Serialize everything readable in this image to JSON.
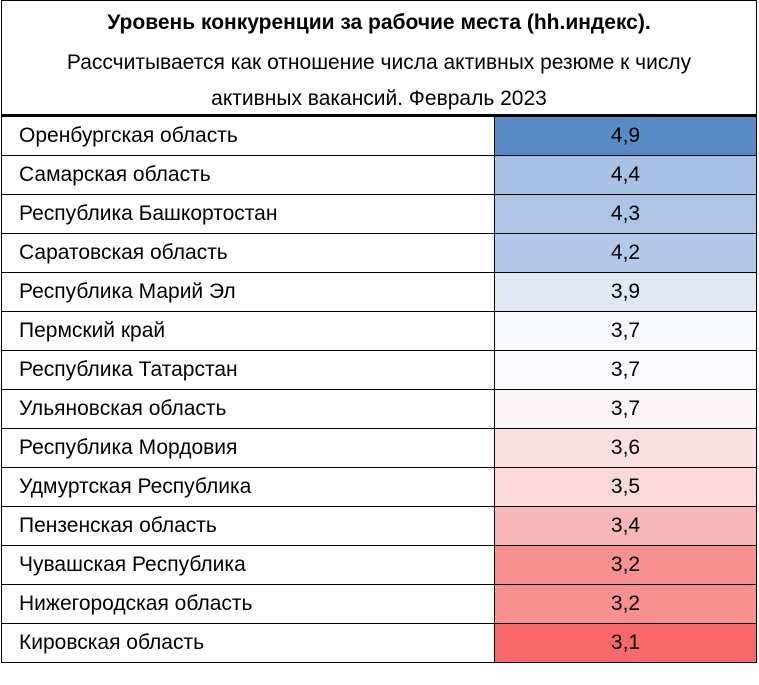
{
  "header": {
    "title": "Уровень конкуренции за рабочие места (hh.индекс).",
    "subtitle": "Рассчитывается как отношение числа активных резюме к числу активных вакансий. Февраль 2023"
  },
  "chart_data": {
    "type": "table",
    "title": "Уровень конкуренции за рабочие места (hh.индекс).",
    "subtitle": "Рассчитывается как отношение числа активных резюме к числу активных вакансий. Февраль 2023",
    "rows": [
      {
        "region": "Оренбургская область",
        "value": "4,9",
        "color": "#5a8ac6"
      },
      {
        "region": "Самарская область",
        "value": "4,4",
        "color": "#a9c1e3"
      },
      {
        "region": "Республика Башкортостан",
        "value": "4,3",
        "color": "#adc4e5"
      },
      {
        "region": "Саратовская область",
        "value": "4,2",
        "color": "#b3c9e8"
      },
      {
        "region": "Республика Марий Эл",
        "value": "3,9",
        "color": "#e0e8f5"
      },
      {
        "region": "Пермский край",
        "value": "3,7",
        "color": "#f7f8fd"
      },
      {
        "region": "Республика Татарстан",
        "value": "3,7",
        "color": "#f9f9fd"
      },
      {
        "region": "Ульяновская область",
        "value": "3,7",
        "color": "#fcf5f8"
      },
      {
        "region": "Республика Мордовия",
        "value": "3,6",
        "color": "#fbdfe3"
      },
      {
        "region": "Удмуртская Республика",
        "value": "3,5",
        "color": "#fbd8dc"
      },
      {
        "region": "Пензенская область",
        "value": "3,4",
        "color": "#f8b8ba"
      },
      {
        "region": "Чувашская Республика",
        "value": "3,2",
        "color": "#f7918f"
      },
      {
        "region": "Нижегородская область",
        "value": "3,2",
        "color": "#f7908f"
      },
      {
        "region": "Кировская область",
        "value": "3,1",
        "color": "#f8696b"
      }
    ]
  }
}
